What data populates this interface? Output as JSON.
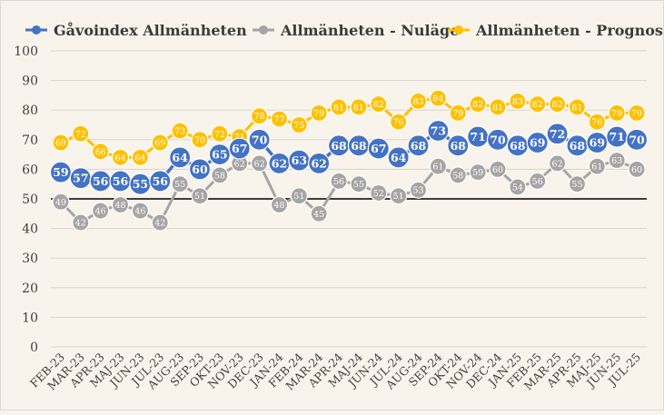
{
  "colors": {
    "background": "#f8f4ec",
    "gridline": "#d9d5cd",
    "baseline": "#000000",
    "axis_text": "#404040",
    "gavoindex": "#4472c4",
    "nulage": "#a5a5a5",
    "prognos": "#ffc000"
  },
  "chart_data": {
    "type": "line",
    "legend_position": "top",
    "grid": true,
    "ylim": [
      0,
      100
    ],
    "yticks": [
      "0",
      "10",
      "20",
      "30",
      "40",
      "50",
      "60",
      "70",
      "80",
      "90",
      "100"
    ],
    "reference_line": 50,
    "categories": [
      "FEB-23",
      "MAR-23",
      "APR-23",
      "MAJ-23",
      "JUN-23",
      "JUL-23",
      "AUG-23",
      "SEP-23",
      "OKT-23",
      "NOV-23",
      "DEC-23",
      "JAN-24",
      "FEB-24",
      "MAR-24",
      "APR-24",
      "MAJ-24",
      "JUN-24",
      "JUL-24",
      "AUG-24",
      "SEP-24",
      "OKT-24",
      "NOV-24",
      "DEC-24",
      "JAN-25",
      "FEB-25",
      "MAR-25",
      "APR-25",
      "MAJ-25",
      "JUN-25",
      "JUL-25"
    ],
    "series": [
      {
        "name": "Gåvoindex Allmänheten",
        "color": "#4472c4",
        "style": "large-marker",
        "values": [
          59,
          57,
          56,
          56,
          55,
          56,
          64,
          60,
          65,
          67,
          70,
          62,
          63,
          62,
          68,
          68,
          67,
          64,
          68,
          73,
          68,
          71,
          70,
          68,
          69,
          72,
          68,
          69,
          71,
          70
        ]
      },
      {
        "name": "Allmänheten - Nuläge",
        "color": "#a5a5a5",
        "style": "small-marker",
        "values": [
          49,
          42,
          46,
          48,
          46,
          42,
          55,
          51,
          58,
          62,
          62,
          48,
          51,
          45,
          56,
          55,
          52,
          51,
          53,
          61,
          58,
          59,
          60,
          54,
          56,
          62,
          55,
          61,
          63,
          60
        ]
      },
      {
        "name": "Allmänheten - Prognos",
        "color": "#ffc000",
        "style": "small-marker",
        "values": [
          69,
          72,
          66,
          64,
          64,
          69,
          73,
          70,
          72,
          71,
          78,
          77,
          75,
          79,
          81,
          81,
          82,
          76,
          83,
          84,
          79,
          82,
          81,
          83,
          82,
          82,
          81,
          76,
          79,
          79
        ]
      }
    ]
  }
}
